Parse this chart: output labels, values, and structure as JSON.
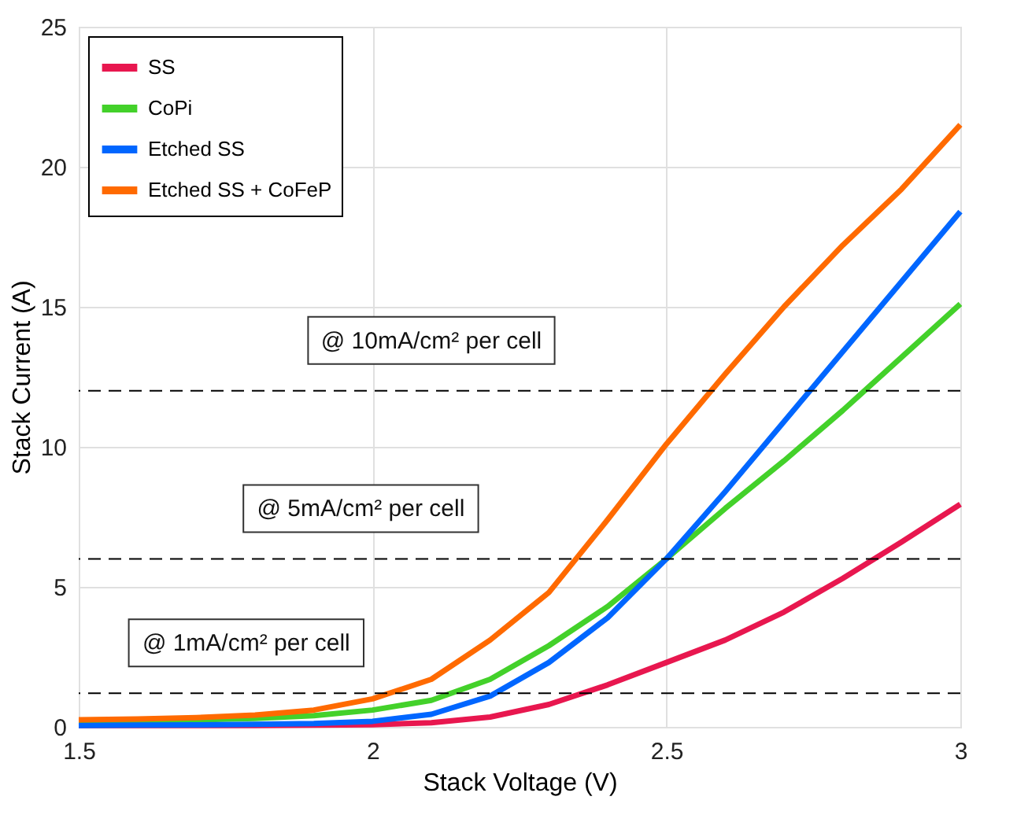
{
  "chart_data": {
    "type": "line",
    "xlabel": "Stack Voltage (V)",
    "ylabel": "Stack Current (A)",
    "x": [
      1.5,
      1.6,
      1.7,
      1.8,
      1.9,
      2.0,
      2.1,
      2.2,
      2.3,
      2.4,
      2.5,
      2.6,
      2.7,
      2.8,
      2.9,
      3.0
    ],
    "series": [
      {
        "name": "SS",
        "color": "#e8174f",
        "values": [
          0.05,
          0.05,
          0.05,
          0.05,
          0.06,
          0.08,
          0.15,
          0.35,
          0.8,
          1.5,
          2.3,
          3.1,
          4.1,
          5.3,
          6.6,
          7.95
        ]
      },
      {
        "name": "CoPi",
        "color": "#43d12a",
        "values": [
          0.2,
          0.22,
          0.25,
          0.3,
          0.4,
          0.6,
          0.95,
          1.7,
          2.9,
          4.3,
          6.0,
          7.8,
          9.5,
          11.3,
          13.2,
          15.1
        ]
      },
      {
        "name": "Etched SS",
        "color": "#0066ff",
        "values": [
          0.05,
          0.06,
          0.07,
          0.09,
          0.12,
          0.2,
          0.45,
          1.1,
          2.3,
          3.9,
          6.0,
          8.4,
          10.9,
          13.4,
          15.9,
          18.4
        ]
      },
      {
        "name": "Etched SS + CoFeP",
        "color": "#ff6a00",
        "values": [
          0.25,
          0.28,
          0.33,
          0.42,
          0.6,
          1.0,
          1.7,
          3.1,
          4.8,
          7.4,
          10.1,
          12.6,
          15.0,
          17.2,
          19.2,
          21.5
        ]
      }
    ],
    "xlim": [
      1.5,
      3
    ],
    "ylim": [
      0,
      25
    ],
    "xticks": [
      1.5,
      2,
      2.5,
      3
    ],
    "yticks": [
      0,
      5,
      10,
      15,
      20,
      25
    ],
    "grid": true,
    "legend": "top left",
    "line_style": "solid",
    "marker": "none",
    "ref_lines": [
      {
        "axis": "y",
        "value": 12,
        "label": "@ 10mA/cm² per cell",
        "color": "#000000",
        "line_style": "dashed"
      },
      {
        "axis": "y",
        "value": 6,
        "label": "@ 5mA/cm² per cell",
        "color": "#000000",
        "line_style": "dashed"
      },
      {
        "axis": "y",
        "value": 1.2,
        "label": "@ 1mA/cm² per cell",
        "color": "#000000",
        "line_style": "dashed"
      }
    ]
  }
}
